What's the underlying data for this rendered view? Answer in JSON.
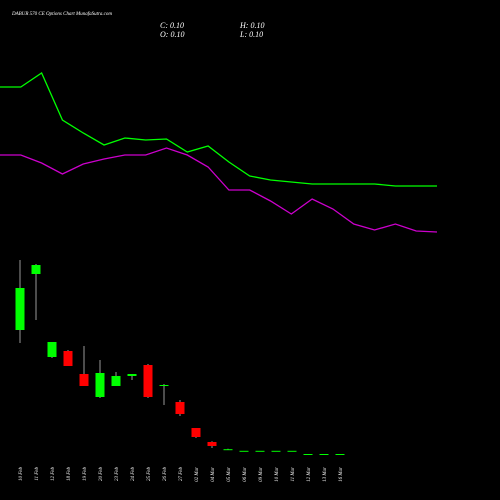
{
  "chart_data": [
    {
      "type": "candlestick",
      "title": "DABUR 570 CE Options Chart MunafaSutra.com",
      "annotations": [
        "C: 0.10",
        "H: 0.10",
        "O: 0.10",
        "L: 0.10"
      ],
      "categories": [
        "10 Feb",
        "11 Feb",
        "12 Feb",
        "18 Feb",
        "19 Feb",
        "20 Feb",
        "23 Feb",
        "24 Feb",
        "25 Feb",
        "26 Feb",
        "27 Feb",
        "02 Mar",
        "04 Mar",
        "05 Mar",
        "06 Mar",
        "09 Mar",
        "10 Mar",
        "11 Mar",
        "12 Mar",
        "13 Mar",
        "16 Mar"
      ],
      "open": [
        3.2,
        4.6,
        2.525,
        2.675,
        2.1,
        1.525,
        1.8,
        2.05,
        2.325,
        1.8,
        1.4,
        0.75,
        0.4,
        0.22,
        0.18,
        0.18,
        0.18,
        0.18,
        0.1,
        0.1,
        0.1
      ],
      "high": [
        4.95,
        4.85,
        2.9,
        2.7,
        2.8,
        2.45,
        2.15,
        2.1,
        2.35,
        1.85,
        1.45,
        0.75,
        0.42,
        0.23,
        0.18,
        0.18,
        0.18,
        0.18,
        0.1,
        0.1,
        0.1
      ],
      "low": [
        2.875,
        3.45,
        2.5,
        2.3,
        1.8,
        1.5,
        1.8,
        1.95,
        1.5,
        1.325,
        1.05,
        0.5,
        0.25,
        0.2,
        0.18,
        0.18,
        0.18,
        0.18,
        0.1,
        0.1,
        0.1
      ],
      "close": [
        4.25,
        4.825,
        2.9,
        2.3,
        1.8,
        2.125,
        2.05,
        2.1,
        1.525,
        1.825,
        1.1,
        0.525,
        0.3,
        0.22,
        0.18,
        0.18,
        0.18,
        0.18,
        0.1,
        0.1,
        0.1
      ],
      "up_color": "#00ff00",
      "down_color": "#ff0000",
      "ylim": [
        -0.05,
        5.2
      ]
    },
    {
      "type": "line",
      "categories": [
        null,
        null,
        null,
        null,
        null,
        null,
        null,
        null,
        null,
        null,
        null,
        null,
        null,
        null,
        null,
        null,
        null,
        null,
        null,
        null,
        null,
        null
      ],
      "series": [
        {
          "color": "#00ff00",
          "values": [
            8.15,
            8.15,
            8.85,
            6.5,
            5.85,
            5.25,
            5.6,
            5.5,
            5.55,
            4.9,
            5.2,
            4.4,
            3.7,
            3.5,
            3.4,
            3.3,
            3.3,
            3.3,
            3.3,
            3.2,
            3.2,
            3.2
          ]
        },
        {
          "color": "#cc00cc",
          "values": [
            4.75,
            4.75,
            4.35,
            3.8,
            4.3,
            4.55,
            4.75,
            4.75,
            5.1,
            4.75,
            4.15,
            3.0,
            3.0,
            2.45,
            1.8,
            2.55,
            2.05,
            1.3,
            1.0,
            1.3,
            0.95,
            0.9
          ]
        }
      ],
      "ylim": [
        0,
        10
      ]
    }
  ]
}
